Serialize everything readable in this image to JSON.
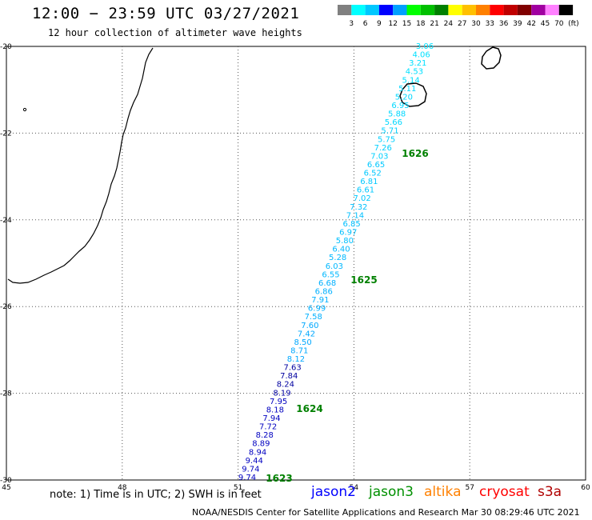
{
  "header": {
    "title": "12:00 − 23:59 UTC 03/27/2021",
    "subtitle": "12 hour collection of altimeter wave heights"
  },
  "legend": {
    "unit_label": "(ft)",
    "labels": [
      "3",
      "6",
      "9",
      "12",
      "15",
      "18",
      "21",
      "24",
      "27",
      "30",
      "33",
      "36",
      "39",
      "42",
      "45",
      "70"
    ],
    "colors": [
      "#808080",
      "#00ffff",
      "#00c8ff",
      "#0000ff",
      "#00a0ff",
      "#00ff00",
      "#00c000",
      "#008000",
      "#ffff00",
      "#ffc000",
      "#ff8000",
      "#ff0000",
      "#c00000",
      "#800000",
      "#a000a0",
      "#ff80ff",
      "#000000"
    ]
  },
  "axes": {
    "lon_labels": [
      "45",
      "48",
      "51",
      "54",
      "57",
      "60"
    ],
    "lat_labels": [
      "-20",
      "-22",
      "-24",
      "-26",
      "-28",
      "-30"
    ]
  },
  "track": {
    "readings": [
      "3.06",
      "4.06",
      "3.21",
      "4.53",
      "5.14",
      "5.11",
      "5.20",
      "6.95",
      "5.88",
      "5.66",
      "5.71",
      "5.75",
      "7.26",
      "7.03",
      "6.65",
      "6.52",
      "6.81",
      "6.61",
      "7.02",
      "7.32",
      "7.14",
      "6.85",
      "6.97",
      "5.80",
      "6.40",
      "5.28",
      "6.03",
      "6.55",
      "6.68",
      "6.86",
      "7.91",
      "6.99",
      "7.58",
      "7.60",
      "7.42",
      "8.50",
      "8.71",
      "8.12",
      "7.63",
      "7.84",
      "8.24",
      "8.19",
      "7.95",
      "8.18",
      "7.94",
      "7.72",
      "8.28",
      "8.89",
      "8.94",
      "9.44",
      "9.74",
      "9.74"
    ],
    "colors": [
      "#00e0ff",
      "#00d8ff",
      "#00d0ff",
      "#00c8ff",
      "#00c0ff",
      "#00b8ff",
      "#00b0ff",
      "#00a8ff",
      "#0000a0",
      "#0000c0",
      "#0000c0"
    ],
    "pass_labels": [
      "1626",
      "1625",
      "1624",
      "1623"
    ],
    "pass_color": "#008000"
  },
  "footer": {
    "note": "note: 1) Time is in UTC; 2) SWH is in feet",
    "satellites": [
      {
        "name": "jason2",
        "color": "#0000ff"
      },
      {
        "name": "jason3",
        "color": "#009000"
      },
      {
        "name": "altika",
        "color": "#ff8000"
      },
      {
        "name": "cryosat",
        "color": "#ff0000"
      },
      {
        "name": "s3a",
        "color": "#b00000"
      }
    ],
    "credit": "NOAA/NESDIS Center for Satellite Applications and Research   Mar 30 08:29:46 UTC 2021"
  }
}
